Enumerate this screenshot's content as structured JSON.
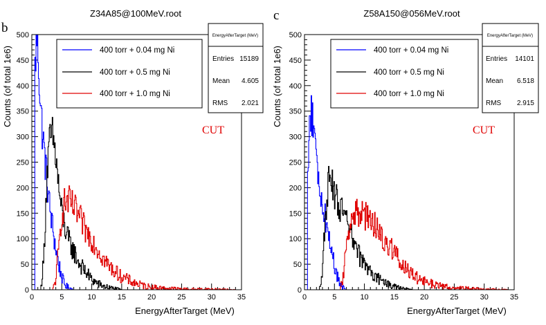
{
  "chart_data": [
    {
      "type": "histogram",
      "panel_label": "b",
      "title": "Z34A85@100MeV.root",
      "xlabel": "EnergyAfterTarget (MeV)",
      "ylabel": "Counts (of total 1e6)",
      "xlim": [
        0,
        35
      ],
      "ylim": [
        0,
        500
      ],
      "xticks": [
        "0",
        "5",
        "10",
        "15",
        "20",
        "25",
        "30",
        "35"
      ],
      "yticks": [
        "0",
        "50",
        "100",
        "150",
        "200",
        "250",
        "300",
        "350",
        "400",
        "450",
        "500"
      ],
      "annotation": "CUT",
      "series": [
        {
          "name": "400 torr + 0.04 mg Ni",
          "color": "#0000ff",
          "x": [
            0.5,
            0.8,
            1.0,
            1.5,
            2.0,
            2.5,
            3.0,
            3.5,
            4.0,
            4.5,
            5.0,
            5.5,
            6.0,
            7.0
          ],
          "y": [
            420,
            500,
            480,
            350,
            280,
            220,
            160,
            120,
            80,
            50,
            25,
            10,
            5,
            0
          ]
        },
        {
          "name": "400 torr + 0.5 mg Ni",
          "color": "#000000",
          "x": [
            1.5,
            2.0,
            2.5,
            3.0,
            3.5,
            4.0,
            4.5,
            5.0,
            6.0,
            7.0,
            8.0,
            9.0,
            10.0,
            11.0,
            12.0,
            13.0,
            14.0,
            15.0
          ],
          "y": [
            0,
            60,
            220,
            290,
            300,
            260,
            200,
            150,
            100,
            75,
            50,
            35,
            20,
            12,
            7,
            4,
            2,
            0
          ]
        },
        {
          "name": "400 torr + 1.0 mg Ni",
          "color": "#e00000",
          "x": [
            3.5,
            4.0,
            4.5,
            5.0,
            5.5,
            6.0,
            7.0,
            8.0,
            9.0,
            10.0,
            11.0,
            12.0,
            13.0,
            14.0,
            15.0,
            16.0,
            17.0,
            18.0,
            19.0,
            20.0,
            22.0,
            24.0,
            26.0,
            30.0,
            34.0
          ],
          "y": [
            0,
            20,
            80,
            150,
            170,
            175,
            160,
            140,
            115,
            100,
            80,
            60,
            45,
            35,
            25,
            20,
            14,
            10,
            7,
            5,
            3,
            2,
            1,
            1,
            0
          ]
        }
      ],
      "legend": {
        "position": "top-center"
      },
      "stats": {
        "title": "EnergyAfterTarget (MeV)",
        "entries_label": "Entries",
        "entries": "15189",
        "mean_label": "Mean",
        "mean": "4.605",
        "rms_label": "RMS",
        "rms": "2.021"
      }
    },
    {
      "type": "histogram",
      "panel_label": "c",
      "title": "Z58A150@056MeV.root",
      "xlabel": "EnergyAfterTarget (MeV)",
      "ylabel": "Counts (of total 1e6)",
      "xlim": [
        0,
        35
      ],
      "ylim": [
        0,
        500
      ],
      "xticks": [
        "0",
        "5",
        "10",
        "15",
        "20",
        "25",
        "30",
        "35"
      ],
      "yticks": [
        "0",
        "50",
        "100",
        "150",
        "200",
        "250",
        "300",
        "350",
        "400",
        "450",
        "500"
      ],
      "annotation": "CUT",
      "series": [
        {
          "name": "400 torr + 0.04 mg Ni",
          "color": "#0000ff",
          "x": [
            0.5,
            1.0,
            1.5,
            2.0,
            2.5,
            3.0,
            3.5,
            4.0,
            4.5,
            5.0,
            5.5,
            6.0,
            6.5,
            7.0
          ],
          "y": [
            200,
            360,
            320,
            250,
            200,
            170,
            140,
            110,
            80,
            50,
            25,
            10,
            3,
            0
          ]
        },
        {
          "name": "400 torr + 0.5 mg Ni",
          "color": "#000000",
          "x": [
            2.5,
            3.0,
            3.5,
            4.0,
            4.5,
            5.0,
            6.0,
            7.0,
            8.0,
            9.0,
            10.0,
            11.0,
            12.0,
            13.0,
            14.0,
            15.0,
            16.0,
            17.0,
            18.0
          ],
          "y": [
            0,
            40,
            140,
            210,
            205,
            190,
            160,
            130,
            100,
            70,
            50,
            35,
            25,
            15,
            10,
            6,
            3,
            1,
            0
          ]
        },
        {
          "name": "400 torr + 1.0 mg Ni",
          "color": "#e00000",
          "x": [
            6.0,
            6.5,
            7.0,
            7.5,
            8.0,
            9.0,
            10.0,
            11.0,
            12.0,
            13.0,
            14.0,
            15.0,
            16.0,
            17.0,
            18.0,
            19.0,
            20.0,
            22.0,
            24.0,
            26.0,
            28.0,
            30.0,
            34.0
          ],
          "y": [
            0,
            30,
            90,
            130,
            145,
            150,
            145,
            140,
            120,
            105,
            90,
            75,
            55,
            40,
            30,
            22,
            16,
            9,
            5,
            3,
            2,
            1,
            0
          ]
        }
      ],
      "legend": {
        "position": "top-center"
      },
      "stats": {
        "title": "EnergyAfterTarget (MeV)",
        "entries_label": "Entries",
        "entries": "14101",
        "mean_label": "Mean",
        "mean": "6.518",
        "rms_label": "RMS",
        "rms": "2.915"
      }
    }
  ]
}
